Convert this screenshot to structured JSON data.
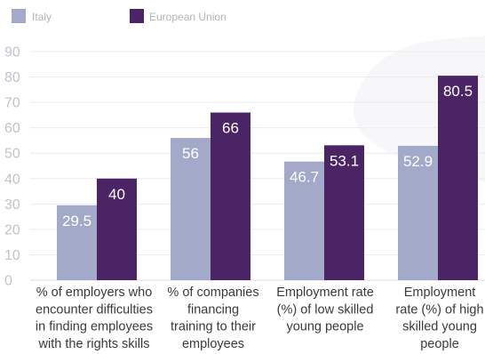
{
  "chart_data": {
    "type": "bar",
    "title": "",
    "xlabel": "",
    "ylabel": "",
    "ylim": [
      0,
      90
    ],
    "yticks": [
      0,
      10,
      20,
      30,
      40,
      50,
      60,
      70,
      80,
      90
    ],
    "grid": true,
    "legend_position": "top-left",
    "categories": [
      [
        "% of employers who",
        "encounter difficulties",
        "in finding employees",
        "with the rights skills"
      ],
      [
        "% of companies",
        "financing",
        "training to their",
        "employees"
      ],
      [
        "Employment rate",
        "(%) of low skilled",
        "young people"
      ],
      [
        "Employment",
        "rate (%) of high",
        "skilled young",
        "people"
      ]
    ],
    "series": [
      {
        "name": "Italy",
        "color": "#a3aac9",
        "values": [
          29.5,
          56,
          46.7,
          52.9
        ],
        "labels": [
          "29.5",
          "56",
          "46.7",
          "52.9"
        ]
      },
      {
        "name": "European Union",
        "color": "#4b2466",
        "values": [
          40,
          66,
          53.1,
          80.5
        ],
        "labels": [
          "40",
          "66",
          "53.1",
          "80.5"
        ]
      }
    ]
  }
}
